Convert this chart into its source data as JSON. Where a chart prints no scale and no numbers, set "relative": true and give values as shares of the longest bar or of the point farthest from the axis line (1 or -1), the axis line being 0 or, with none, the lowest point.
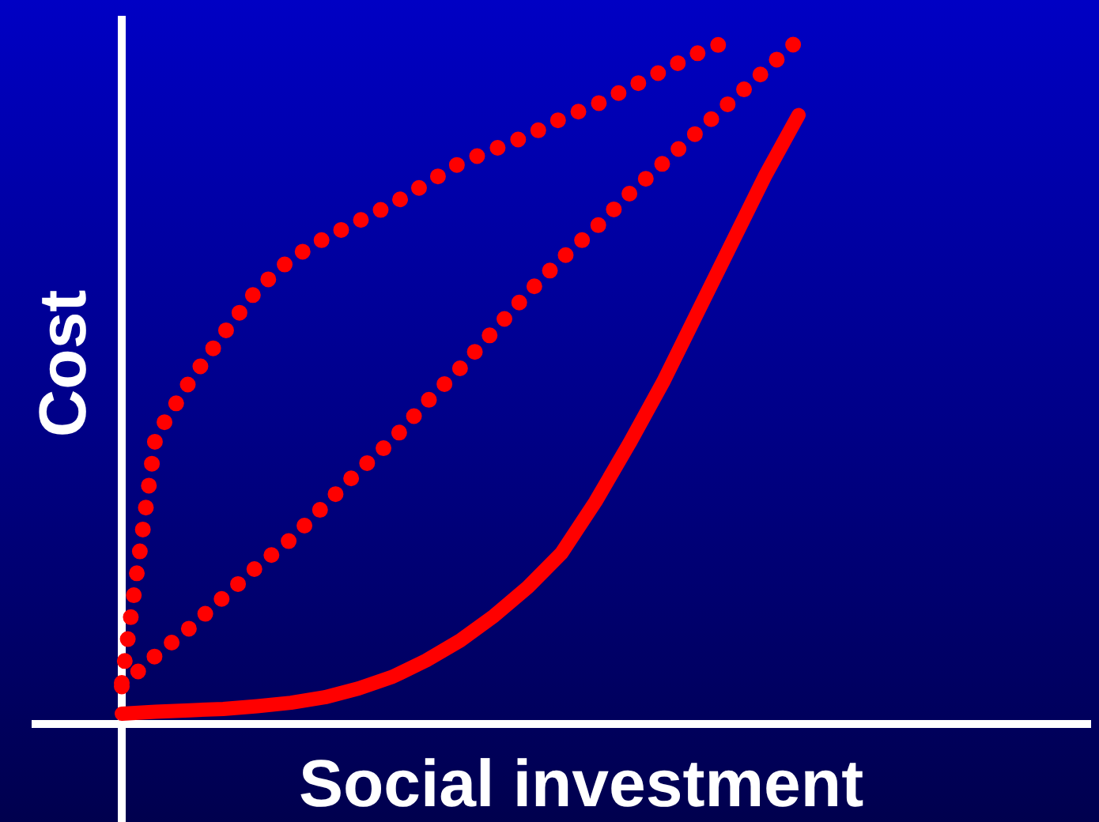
{
  "chart_data": {
    "type": "line",
    "relative": true,
    "xlabel": "Social investment",
    "ylabel": "Cost",
    "legend": false,
    "marker": "none",
    "categories": [
      null,
      null,
      null,
      null,
      null,
      null,
      null,
      null,
      null,
      null,
      null,
      null,
      null,
      null,
      null,
      null,
      null,
      null,
      null,
      null,
      null
    ],
    "series": [
      {
        "color": "#ff0000",
        "line_style": "solid",
        "values": [
          0.015,
          0.018,
          0.02,
          0.022,
          0.026,
          0.031,
          0.039,
          0.052,
          0.069,
          0.093,
          0.122,
          0.158,
          0.2,
          0.25,
          0.325,
          0.41,
          0.5,
          0.6,
          0.7,
          0.8,
          0.89
        ]
      },
      {
        "color": "#ff0000",
        "line_style": "dotted",
        "values": [
          0.055,
          0.1,
          0.14,
          0.185,
          0.23,
          0.27,
          0.32,
          0.37,
          0.415,
          0.47,
          0.52,
          0.575,
          0.63,
          0.68,
          0.725,
          0.775,
          0.82,
          0.865,
          0.91,
          0.955,
          1
        ]
      },
      {
        "color": "#ff0000",
        "line_style": "dotted",
        "values": [
          0.06,
          0.42,
          0.5,
          0.57,
          0.635,
          0.68,
          0.71,
          0.735,
          0.76,
          0.79,
          0.82,
          0.84,
          0.86,
          0.885,
          0.905,
          0.93,
          0.955,
          0.98,
          1,
          null,
          null
        ]
      }
    ]
  }
}
